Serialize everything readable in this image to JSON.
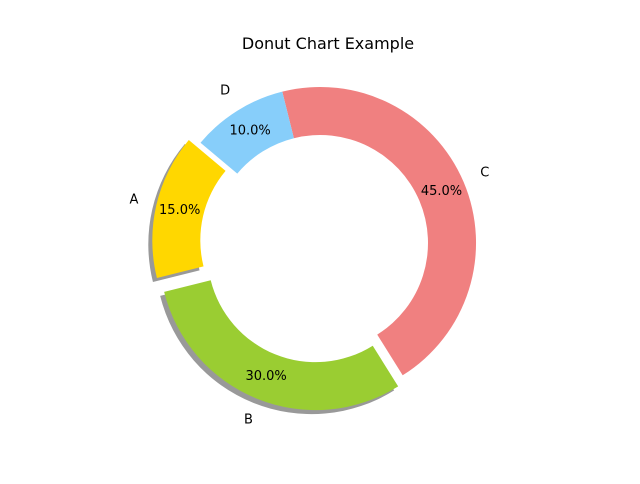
{
  "chart_data": {
    "type": "pie",
    "variant": "donut",
    "title": "Donut Chart Example",
    "categories": [
      "A",
      "B",
      "C",
      "D"
    ],
    "values": [
      15,
      30,
      45,
      10
    ],
    "percent_labels": [
      "15.0%",
      "30.0%",
      "45.0%",
      "10.0%"
    ],
    "colors": [
      "#ffd700",
      "#9acd32",
      "#f08080",
      "#87cefa"
    ],
    "start_angle_deg": 140,
    "exploded": [
      "A",
      "B"
    ],
    "shadow": true,
    "legend": false
  }
}
